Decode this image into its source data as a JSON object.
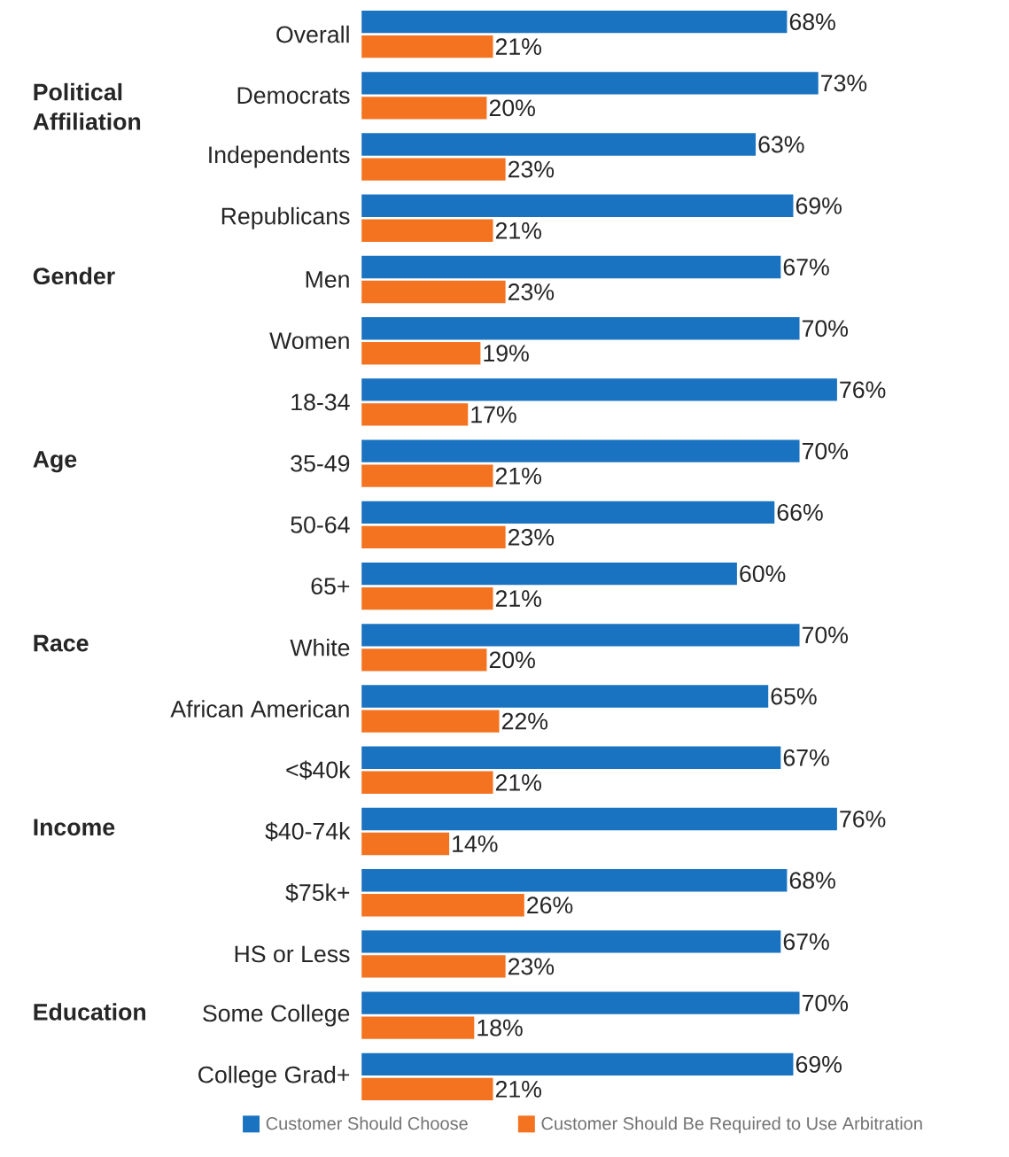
{
  "chart_data": {
    "type": "bar",
    "orientation": "horizontal",
    "legend": "bottom",
    "tick_labels": "y",
    "categories": [
      "Overall",
      "Democrats",
      "Independents",
      "Republicans",
      "Men",
      "Women",
      "18-34",
      "35-49",
      "50-64",
      "65+",
      "White",
      "African American",
      "<$40k",
      "$40-74k",
      "$75k+",
      "HS or Less",
      "Some College",
      "College Grad+"
    ],
    "series": [
      {
        "name": "Customer Should Choose",
        "color": "#1a73c0",
        "values": [
          68,
          73,
          63,
          69,
          67,
          70,
          76,
          70,
          66,
          60,
          70,
          65,
          67,
          76,
          68,
          67,
          70,
          69
        ],
        "value_labels": [
          "68%",
          "73%",
          "63%",
          "69%",
          "67%",
          "70%",
          "76%",
          "70%",
          "66%",
          "60%",
          "70%",
          "65%",
          "67%",
          "76%",
          "68%",
          "67%",
          "70%",
          "69%"
        ]
      },
      {
        "name": "Customer Should Be Required to Use Arbitration",
        "color": "#f47321",
        "values": [
          21,
          20,
          23,
          21,
          23,
          19,
          17,
          21,
          23,
          21,
          20,
          22,
          21,
          14,
          26,
          23,
          18,
          21
        ],
        "value_labels": [
          "21%",
          "20%",
          "23%",
          "21%",
          "23%",
          "19%",
          "17%",
          "21%",
          "23%",
          "21%",
          "20%",
          "22%",
          "21%",
          "14%",
          "26%",
          "23%",
          "18%",
          "21%"
        ]
      }
    ],
    "annotations": [
      "Political Affiliation",
      "Gender",
      "Age",
      "Race",
      "Income",
      "Education"
    ]
  }
}
